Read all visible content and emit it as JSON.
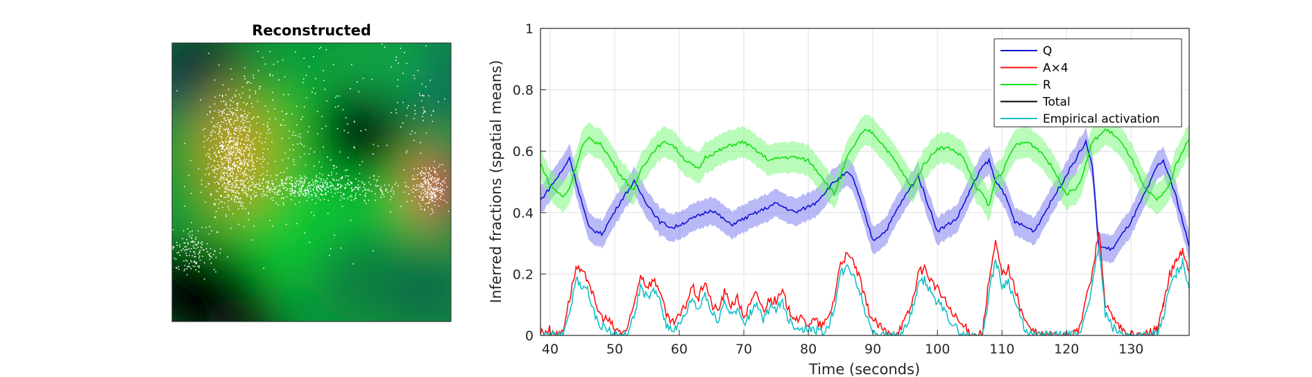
{
  "left_panel": {
    "title": "Reconstructed"
  },
  "chart_data": {
    "type": "line",
    "xlabel": "Time (seconds)",
    "ylabel": "Inferred fractions (spatial means)",
    "xlim": [
      38.5,
      139
    ],
    "ylim": [
      0,
      1
    ],
    "xticks": [
      40,
      50,
      60,
      70,
      80,
      90,
      100,
      110,
      120,
      130
    ],
    "yticks": [
      0,
      0.2,
      0.4,
      0.6,
      0.8,
      1
    ],
    "xtick_labels": [
      "40",
      "50",
      "60",
      "70",
      "80",
      "90",
      "100",
      "110",
      "120",
      "130"
    ],
    "ytick_labels": [
      "0",
      "0.2",
      "0.4",
      "0.6",
      "0.8",
      "1"
    ],
    "grid": true,
    "legend_position": "top-right",
    "legend": [
      "Q",
      "A×4",
      "R",
      "Total",
      "Empirical activation"
    ],
    "series": [
      {
        "name": "Q",
        "color": "#1010d8",
        "band_color": "#8080f0",
        "band_halfwidth": 0.045,
        "x": [
          38.5,
          42,
          43,
          46,
          48,
          51,
          53,
          55,
          57,
          59,
          62,
          65,
          68,
          72,
          75,
          78,
          81,
          84,
          86,
          87,
          90,
          92,
          94,
          97,
          99,
          100,
          103,
          105,
          107,
          108,
          109,
          110,
          112,
          115,
          118,
          121,
          123,
          124,
          125,
          127,
          130,
          133,
          134,
          135,
          137,
          139
        ],
        "y": [
          0.44,
          0.54,
          0.58,
          0.35,
          0.33,
          0.44,
          0.5,
          0.43,
          0.37,
          0.35,
          0.38,
          0.41,
          0.36,
          0.4,
          0.43,
          0.4,
          0.43,
          0.5,
          0.53,
          0.51,
          0.31,
          0.34,
          0.42,
          0.52,
          0.4,
          0.34,
          0.38,
          0.47,
          0.55,
          0.57,
          0.5,
          0.48,
          0.37,
          0.34,
          0.45,
          0.56,
          0.63,
          0.55,
          0.29,
          0.28,
          0.37,
          0.5,
          0.55,
          0.57,
          0.45,
          0.29
        ]
      },
      {
        "name": "A×4",
        "color": "#ff1010",
        "x": [
          38.5,
          40,
          41,
          42,
          43,
          44,
          45,
          46,
          47,
          48,
          49,
          50,
          51,
          52,
          53,
          54,
          55,
          56,
          57,
          58,
          59,
          60,
          61,
          62,
          63,
          64,
          65,
          66,
          67,
          68,
          69,
          70,
          71,
          72,
          73,
          74,
          75,
          76,
          77,
          78,
          79,
          80,
          81,
          82,
          83,
          84,
          85,
          86,
          87,
          88,
          89,
          90,
          91,
          92,
          93,
          94,
          95,
          96,
          97,
          98,
          99,
          100,
          101,
          102,
          103,
          104,
          105,
          106,
          107,
          108,
          109,
          110,
          111,
          112,
          113,
          114,
          115,
          116,
          117,
          118,
          119,
          120,
          121,
          122,
          123,
          124,
          125,
          126,
          127,
          128,
          129,
          130,
          131,
          132,
          133,
          134,
          135,
          136,
          137,
          138,
          139
        ],
        "y": [
          0.01,
          0.02,
          0.0,
          0.02,
          0.12,
          0.22,
          0.2,
          0.18,
          0.1,
          0.06,
          0.05,
          0.02,
          0.01,
          0.02,
          0.1,
          0.2,
          0.16,
          0.18,
          0.15,
          0.06,
          0.04,
          0.06,
          0.1,
          0.16,
          0.12,
          0.18,
          0.1,
          0.08,
          0.14,
          0.1,
          0.12,
          0.06,
          0.1,
          0.14,
          0.08,
          0.12,
          0.11,
          0.14,
          0.08,
          0.06,
          0.05,
          0.04,
          0.05,
          0.03,
          0.05,
          0.12,
          0.24,
          0.26,
          0.24,
          0.18,
          0.1,
          0.05,
          0.03,
          0.01,
          0.0,
          0.02,
          0.05,
          0.1,
          0.2,
          0.22,
          0.18,
          0.15,
          0.12,
          0.08,
          0.05,
          0.03,
          0.01,
          0.0,
          0.01,
          0.18,
          0.3,
          0.2,
          0.22,
          0.15,
          0.08,
          0.03,
          0.01,
          0.0,
          0.0,
          0.0,
          0.0,
          0.01,
          0.0,
          0.02,
          0.12,
          0.2,
          0.35,
          0.1,
          0.06,
          0.03,
          0.01,
          0.0,
          0.0,
          0.0,
          0.01,
          0.02,
          0.1,
          0.2,
          0.24,
          0.28,
          0.2
        ]
      },
      {
        "name": "R",
        "color": "#10e010",
        "band_color": "#80f880",
        "band_halfwidth": 0.05,
        "x": [
          38.5,
          40,
          42,
          43,
          45,
          46,
          48,
          51,
          53,
          54,
          56,
          57,
          58,
          59,
          61,
          63,
          64,
          66,
          68,
          70,
          72,
          74,
          76,
          78,
          80,
          82,
          84,
          86,
          88,
          89,
          90,
          92,
          94,
          96,
          98,
          100,
          102,
          104,
          106,
          107,
          108,
          109,
          110,
          112,
          114,
          116,
          118,
          120,
          122,
          124,
          126,
          127,
          128,
          130,
          132,
          134,
          136,
          137,
          139
        ],
        "y": [
          0.56,
          0.49,
          0.45,
          0.48,
          0.62,
          0.64,
          0.62,
          0.52,
          0.47,
          0.54,
          0.6,
          0.62,
          0.63,
          0.62,
          0.57,
          0.54,
          0.58,
          0.6,
          0.62,
          0.63,
          0.6,
          0.57,
          0.58,
          0.58,
          0.57,
          0.52,
          0.46,
          0.58,
          0.65,
          0.67,
          0.66,
          0.61,
          0.55,
          0.48,
          0.56,
          0.61,
          0.61,
          0.58,
          0.48,
          0.46,
          0.42,
          0.51,
          0.53,
          0.62,
          0.63,
          0.6,
          0.54,
          0.46,
          0.49,
          0.63,
          0.67,
          0.66,
          0.64,
          0.58,
          0.48,
          0.44,
          0.49,
          0.56,
          0.64
        ]
      },
      {
        "name": "Total",
        "color": "#000000",
        "x": [],
        "y": []
      },
      {
        "name": "Empirical activation",
        "color": "#10c0c8",
        "x": [
          38.5,
          40,
          41,
          42,
          43,
          44,
          45,
          46,
          47,
          48,
          49,
          50,
          51,
          52,
          53,
          54,
          55,
          56,
          57,
          58,
          59,
          60,
          61,
          62,
          63,
          64,
          65,
          66,
          67,
          68,
          69,
          70,
          71,
          72,
          73,
          74,
          75,
          76,
          77,
          78,
          79,
          80,
          81,
          82,
          83,
          84,
          85,
          86,
          87,
          88,
          89,
          90,
          91,
          92,
          93,
          94,
          95,
          96,
          97,
          98,
          99,
          100,
          101,
          102,
          103,
          104,
          105,
          106,
          107,
          108,
          109,
          110,
          111,
          112,
          113,
          114,
          115,
          116,
          117,
          118,
          119,
          120,
          121,
          122,
          123,
          124,
          125,
          126,
          127,
          128,
          129,
          130,
          131,
          132,
          133,
          134,
          135,
          136,
          137,
          138,
          139
        ],
        "y": [
          0.0,
          0.0,
          0.0,
          0.0,
          0.08,
          0.18,
          0.16,
          0.14,
          0.06,
          0.03,
          0.02,
          0.0,
          0.0,
          0.0,
          0.06,
          0.16,
          0.12,
          0.14,
          0.12,
          0.03,
          0.02,
          0.03,
          0.07,
          0.12,
          0.08,
          0.14,
          0.07,
          0.05,
          0.11,
          0.07,
          0.09,
          0.03,
          0.07,
          0.11,
          0.05,
          0.09,
          0.08,
          0.11,
          0.05,
          0.03,
          0.02,
          0.02,
          0.02,
          0.01,
          0.02,
          0.09,
          0.2,
          0.22,
          0.2,
          0.14,
          0.06,
          0.02,
          0.0,
          0.0,
          0.0,
          0.0,
          0.02,
          0.07,
          0.16,
          0.18,
          0.14,
          0.11,
          0.08,
          0.05,
          0.02,
          0.0,
          0.0,
          0.0,
          0.0,
          0.14,
          0.25,
          0.16,
          0.18,
          0.11,
          0.05,
          0.0,
          0.0,
          0.0,
          0.0,
          0.0,
          0.0,
          0.0,
          0.0,
          0.0,
          0.08,
          0.16,
          0.3,
          0.07,
          0.03,
          0.01,
          0.0,
          0.0,
          0.0,
          0.0,
          0.0,
          0.0,
          0.06,
          0.16,
          0.2,
          0.24,
          0.16
        ]
      }
    ]
  }
}
